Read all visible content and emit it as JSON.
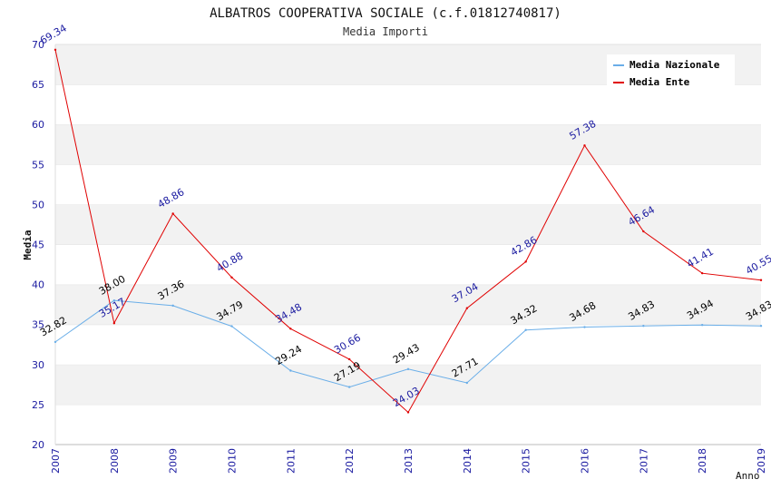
{
  "chart_data": {
    "type": "line",
    "title": "ALBATROS COOPERATIVA SOCIALE (c.f.01812740817)",
    "subtitle": "Media Importi",
    "xlabel": "Anno",
    "ylabel": "Media",
    "ylim": [
      20,
      70
    ],
    "yticks": [
      "20",
      "25",
      "30",
      "35",
      "40",
      "45",
      "50",
      "55",
      "60",
      "65",
      "70"
    ],
    "categories": [
      "2007",
      "2008",
      "2009",
      "2010",
      "2011",
      "2012",
      "2013",
      "2014",
      "2015",
      "2016",
      "2017",
      "2018",
      "2019"
    ],
    "grid": true,
    "legend_position": "top-right",
    "series": [
      {
        "name": "Media Nazionale",
        "color": "#6aaee8",
        "label_color": "#000000",
        "values": [
          32.82,
          38.0,
          37.36,
          34.79,
          29.24,
          27.19,
          29.43,
          27.71,
          34.32,
          34.68,
          34.83,
          34.94,
          34.83
        ],
        "labels": [
          "32.82",
          "38.00",
          "37.36",
          "34.79",
          "29.24",
          "27.19",
          "29.43",
          "27.71",
          "34.32",
          "34.68",
          "34.83",
          "34.94",
          "34.83"
        ]
      },
      {
        "name": "Media Ente",
        "color": "#e00000",
        "label_color": "#1a1aa0",
        "values": [
          69.34,
          35.17,
          48.86,
          40.88,
          34.48,
          30.66,
          24.03,
          37.04,
          42.86,
          57.38,
          46.64,
          41.41,
          40.55
        ],
        "labels": [
          "69.34",
          "35.17",
          "48.86",
          "40.88",
          "34.48",
          "30.66",
          "24.03",
          "37.04",
          "42.86",
          "57.38",
          "46.64",
          "41.41",
          "40.55"
        ]
      }
    ]
  }
}
